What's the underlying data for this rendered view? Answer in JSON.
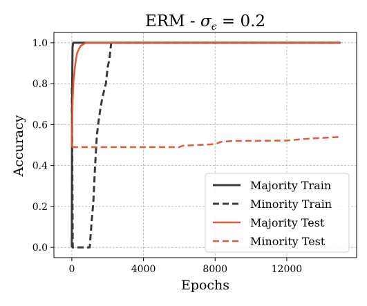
{
  "chart_data": {
    "type": "line",
    "title_prefix": "ERM - ",
    "title_symbol": "σ",
    "title_subscript": "ϵ",
    "title_suffix": " = 0.2",
    "xlabel": "Epochs",
    "ylabel": "Accuracy",
    "xlim": [
      -1000,
      15900
    ],
    "ylim": [
      -0.05,
      1.05
    ],
    "xticks": [
      0,
      4000,
      8000,
      12000
    ],
    "yticks": [
      0.0,
      0.2,
      0.4,
      0.6,
      0.8,
      1.0
    ],
    "xtick_labels": [
      "0",
      "4000",
      "8000",
      "12000"
    ],
    "ytick_labels": [
      "0.0",
      "0.2",
      "0.4",
      "0.6",
      "0.8",
      "1.0"
    ],
    "grid": true,
    "legend_position": "lower-right",
    "series": [
      {
        "name": "Majority Train",
        "color": "#3a3a3a",
        "style": "solid",
        "x": [
          0,
          10,
          20,
          40,
          80,
          15000
        ],
        "y": [
          0.0,
          0.5,
          0.8,
          0.98,
          1.0,
          1.0
        ]
      },
      {
        "name": "Minority Train",
        "color": "#3a3a3a",
        "style": "dashed",
        "x": [
          0,
          20,
          50,
          100,
          1000,
          1100,
          1200,
          1300,
          1400,
          1500,
          1600,
          1700,
          1900,
          2000,
          2100,
          2200,
          15000
        ],
        "y": [
          0.78,
          0.5,
          0.0,
          0.0,
          0.0,
          0.12,
          0.22,
          0.4,
          0.55,
          0.62,
          0.68,
          0.73,
          0.8,
          0.88,
          0.92,
          1.0,
          1.0
        ]
      },
      {
        "name": "Majority Test",
        "color": "#e0593c",
        "style": "solid",
        "x": [
          0,
          20,
          50,
          100,
          200,
          300,
          400,
          500,
          600,
          700,
          800,
          1000,
          15000
        ],
        "y": [
          0.49,
          0.6,
          0.72,
          0.82,
          0.9,
          0.95,
          0.97,
          0.985,
          0.99,
          0.995,
          1.0,
          1.0,
          1.0
        ]
      },
      {
        "name": "Minority Test",
        "color": "#e0593c",
        "style": "dashed",
        "x": [
          0,
          50,
          1000,
          3000,
          6000,
          6200,
          7000,
          8000,
          8300,
          9000,
          12000,
          13000,
          14000,
          15000
        ],
        "y": [
          0.49,
          0.49,
          0.49,
          0.49,
          0.49,
          0.497,
          0.5,
          0.505,
          0.515,
          0.52,
          0.522,
          0.53,
          0.535,
          0.54
        ]
      }
    ]
  }
}
